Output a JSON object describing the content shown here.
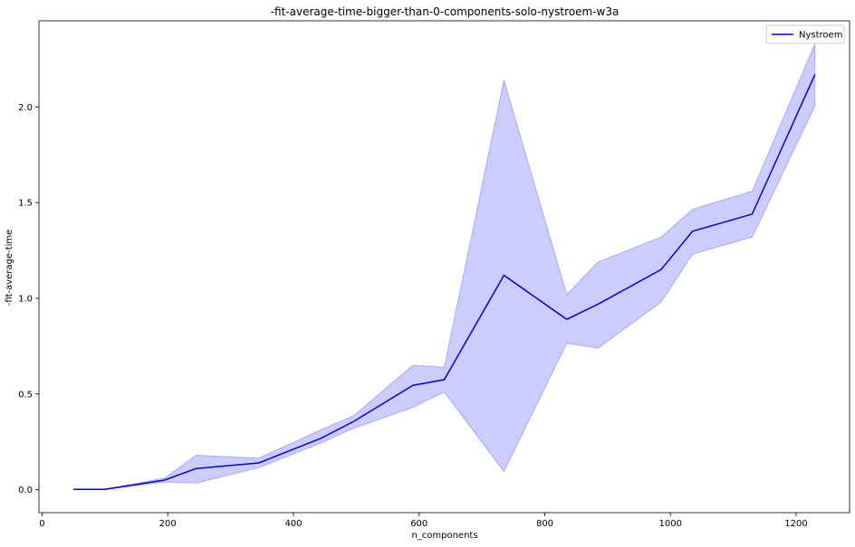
{
  "chart_data": {
    "type": "line",
    "title": "-fit-average-time-bigger-than-0-components-solo-nystroem-w3a",
    "xlabel": "n_components",
    "ylabel": "-fit-average-time",
    "xlim": [
      -5,
      1285
    ],
    "ylim": [
      -0.12,
      2.45
    ],
    "xticks": [
      0,
      200,
      400,
      600,
      800,
      1000,
      1200
    ],
    "yticks": [
      0.0,
      0.5,
      1.0,
      1.5,
      2.0
    ],
    "xtick_labels": [
      "0",
      "200",
      "400",
      "600",
      "800",
      "1000",
      "1200"
    ],
    "ytick_labels": [
      "0.0",
      "0.5",
      "1.0",
      "1.5",
      "2.0"
    ],
    "legend": {
      "position": "top-right",
      "entries": [
        "Nystroem"
      ]
    },
    "series": [
      {
        "name": "Nystroem",
        "color": "#0000dd",
        "band_color": "#0000ff",
        "x": [
          50,
          100,
          195,
          245,
          345,
          445,
          495,
          590,
          640,
          735,
          835,
          885,
          985,
          1035,
          1130,
          1230
        ],
        "y": [
          0.002,
          0.002,
          0.05,
          0.11,
          0.14,
          0.27,
          0.355,
          0.545,
          0.575,
          1.12,
          0.89,
          0.97,
          1.15,
          1.35,
          1.44,
          2.17
        ],
        "lower": [
          0.001,
          0.001,
          0.04,
          0.035,
          0.115,
          0.245,
          0.32,
          0.43,
          0.51,
          0.095,
          0.765,
          0.74,
          0.98,
          1.23,
          1.32,
          2.005
        ],
        "upper": [
          0.003,
          0.003,
          0.06,
          0.18,
          0.165,
          0.315,
          0.385,
          0.65,
          0.64,
          2.14,
          1.02,
          1.19,
          1.32,
          1.465,
          1.56,
          2.33
        ]
      }
    ]
  }
}
